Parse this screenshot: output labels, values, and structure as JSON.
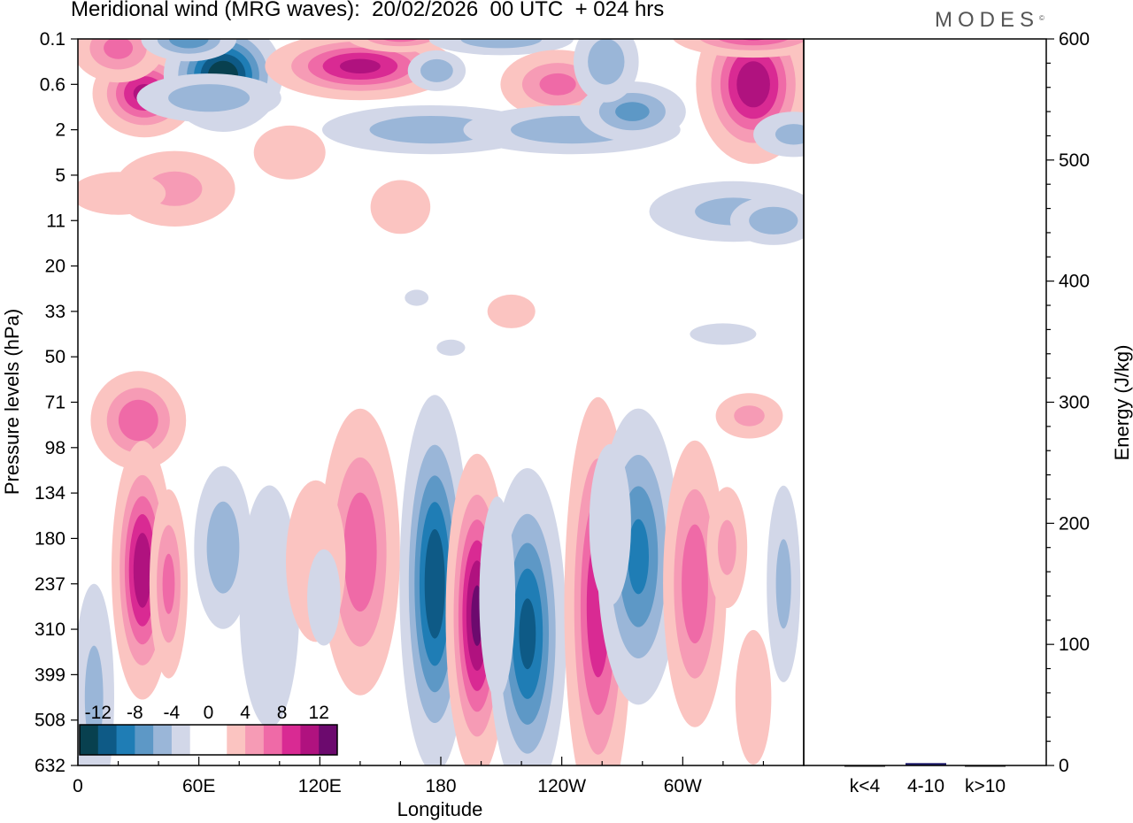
{
  "header": {
    "title": "Meridional wind (MRG waves):  20/02/2026  00 UTC  + 024 hrs",
    "brand": "MODES",
    "brand_mark": "©"
  },
  "colors": {
    "n12": "#08404f",
    "n10": "#0e5a86",
    "n8": "#1f7db5",
    "n6": "#5d98c6",
    "n4": "#9ab6d8",
    "n2": "#d2d7e8",
    "zero": "#ffffff",
    "p2": "#fbc4c1",
    "p4": "#f69bb5",
    "p6": "#ef6aa7",
    "p8": "#d92a93",
    "p10": "#b0127f",
    "p12": "#6c0a6e",
    "bar": "#1c1a6b"
  },
  "chart_data": [
    {
      "type": "heatmap",
      "title": "Meridional wind (MRG waves):  20/02/2026  00 UTC  + 024 hrs",
      "xlabel": "Longitude",
      "ylabel": "Pressure levels (hPa)",
      "x_ticks": [
        "0",
        "60E",
        "120E",
        "180",
        "120W",
        "60W"
      ],
      "x_tick_degrees": [
        0,
        60,
        120,
        180,
        240,
        300
      ],
      "xlim": [
        0,
        360
      ],
      "y_ticks": [
        "0.1",
        "0.6",
        "2",
        "5",
        "11",
        "20",
        "33",
        "50",
        "71",
        "98",
        "134",
        "180",
        "237",
        "310",
        "399",
        "508",
        "632"
      ],
      "y_index_range": [
        0,
        16
      ],
      "colorbar": {
        "labels": [
          "-12",
          "-8",
          "-4",
          "0",
          "4",
          "8",
          "12"
        ],
        "bins": [
          "n12",
          "n10",
          "n8",
          "n6",
          "n4",
          "n2",
          "zero",
          "zero",
          "p2",
          "p4",
          "p6",
          "p8",
          "p10",
          "p12"
        ]
      },
      "features": [
        {
          "lon": 33,
          "lev": 1.2,
          "value": 10,
          "wlon": 12,
          "wlev": 0.45
        },
        {
          "lon": 20,
          "lev": 0.2,
          "value": 6,
          "wlon": 12,
          "wlev": 0.4
        },
        {
          "lon": 72,
          "lev": 0.8,
          "value": -13,
          "wlon": 13,
          "wlev": 0.55
        },
        {
          "lon": 55,
          "lev": 0.0,
          "value": -7,
          "wlon": 12,
          "wlev": 0.25
        },
        {
          "lon": 65,
          "lev": 1.3,
          "value": -5,
          "wlon": 20,
          "wlev": 0.3
        },
        {
          "lon": 140,
          "lev": 0.6,
          "value": 10,
          "wlon": 22,
          "wlev": 0.35
        },
        {
          "lon": 160,
          "lev": -0.1,
          "value": 7,
          "wlon": 14,
          "wlev": 0.2
        },
        {
          "lon": 178,
          "lev": 0.7,
          "value": -5,
          "wlon": 8,
          "wlev": 0.25
        },
        {
          "lon": 210,
          "lev": 0.0,
          "value": -5,
          "wlon": 20,
          "wlev": 0.2
        },
        {
          "lon": 175,
          "lev": 2.0,
          "value": -5,
          "wlon": 30,
          "wlev": 0.3
        },
        {
          "lon": 238,
          "lev": 1.0,
          "value": 6,
          "wlon": 15,
          "wlev": 0.4
        },
        {
          "lon": 245,
          "lev": 2.0,
          "value": -5,
          "wlon": 30,
          "wlev": 0.3
        },
        {
          "lon": 275,
          "lev": 1.6,
          "value": -6,
          "wlon": 14,
          "wlev": 0.35
        },
        {
          "lon": 262,
          "lev": 0.5,
          "value": -5,
          "wlon": 9,
          "wlev": 0.5
        },
        {
          "lon": 335,
          "lev": 1.0,
          "value": 11,
          "wlon": 13,
          "wlev": 0.8
        },
        {
          "lon": 335,
          "lev": -0.1,
          "value": 8,
          "wlon": 20,
          "wlev": 0.25
        },
        {
          "lon": 355,
          "lev": 2.1,
          "value": -4,
          "wlon": 12,
          "wlev": 0.3
        },
        {
          "lon": 325,
          "lev": 3.8,
          "value": -4,
          "wlon": 25,
          "wlev": 0.4
        },
        {
          "lon": 345,
          "lev": 4.0,
          "value": -5,
          "wlon": 12,
          "wlev": 0.3
        },
        {
          "lon": 48,
          "lev": 3.3,
          "value": 4,
          "wlon": 18,
          "wlev": 0.5
        },
        {
          "lon": 20,
          "lev": 3.4,
          "value": 2,
          "wlon": 20,
          "wlev": 0.4
        },
        {
          "lon": 105,
          "lev": 2.5,
          "value": 3,
          "wlon": 12,
          "wlev": 0.4
        },
        {
          "lon": 160,
          "lev": 3.7,
          "value": 3,
          "wlon": 10,
          "wlev": 0.4
        },
        {
          "lon": 215,
          "lev": 6.0,
          "value": 3,
          "wlon": 8,
          "wlev": 0.25
        },
        {
          "lon": 320,
          "lev": 6.5,
          "value": -2,
          "wlon": 14,
          "wlev": 0.2
        },
        {
          "lon": 185,
          "lev": 6.8,
          "value": -2,
          "wlon": 6,
          "wlev": 0.15
        },
        {
          "lon": 168,
          "lev": 5.7,
          "value": -2,
          "wlon": 5,
          "wlev": 0.15
        },
        {
          "lon": 30,
          "lev": 8.4,
          "value": 7,
          "wlon": 12,
          "wlev": 0.55
        },
        {
          "lon": 333,
          "lev": 8.3,
          "value": 4,
          "wlon": 10,
          "wlev": 0.3
        },
        {
          "lon": 32,
          "lev": 11.7,
          "value": 11,
          "wlon": 7,
          "wlev": 1.3
        },
        {
          "lon": 45,
          "lev": 12.0,
          "value": 6,
          "wlon": 5,
          "wlev": 1.1
        },
        {
          "lon": 72,
          "lev": 11.2,
          "value": -5,
          "wlon": 8,
          "wlev": 1.0
        },
        {
          "lon": 95,
          "lev": 12.5,
          "value": -3,
          "wlon": 10,
          "wlev": 1.8
        },
        {
          "lon": 8,
          "lev": 14.5,
          "value": -4,
          "wlon": 6,
          "wlev": 1.5
        },
        {
          "lon": 140,
          "lev": 11.3,
          "value": 7,
          "wlon": 10,
          "wlev": 1.6
        },
        {
          "lon": 118,
          "lev": 11.5,
          "value": 3,
          "wlon": 10,
          "wlev": 1.2
        },
        {
          "lon": 177,
          "lev": 12.0,
          "value": -11,
          "wlon": 8,
          "wlev": 1.9
        },
        {
          "lon": 198,
          "lev": 12.7,
          "value": 12,
          "wlon": 7,
          "wlev": 1.6
        },
        {
          "lon": 223,
          "lev": 13.1,
          "value": -10,
          "wlon": 9,
          "wlev": 1.7
        },
        {
          "lon": 208,
          "lev": 12.3,
          "value": -3,
          "wlon": 6,
          "wlev": 1.5
        },
        {
          "lon": 258,
          "lev": 12.5,
          "value": 9,
          "wlon": 8,
          "wlev": 2.2
        },
        {
          "lon": 278,
          "lev": 11.4,
          "value": -8,
          "wlon": 10,
          "wlev": 1.6
        },
        {
          "lon": 264,
          "lev": 10.7,
          "value": -3,
          "wlon": 7,
          "wlev": 1.2
        },
        {
          "lon": 306,
          "lev": 12.0,
          "value": 7,
          "wlon": 8,
          "wlev": 1.6
        },
        {
          "lon": 322,
          "lev": 11.2,
          "value": 4,
          "wlon": 6,
          "wlev": 0.8
        },
        {
          "lon": 350,
          "lev": 12.0,
          "value": -4,
          "wlon": 5,
          "wlev": 1.3
        },
        {
          "lon": 335,
          "lev": 14.5,
          "value": 3,
          "wlon": 6,
          "wlev": 1.0
        },
        {
          "lon": 122,
          "lev": 12.3,
          "value": -2,
          "wlon": 7,
          "wlev": 0.9
        }
      ]
    },
    {
      "type": "bar",
      "categories": [
        "k<4",
        "4-10",
        "k>10"
      ],
      "values": [
        0,
        2,
        0
      ],
      "ylabel": "Energy (J/kg)",
      "ylim": [
        0,
        600
      ],
      "y_ticks": [
        0,
        100,
        200,
        300,
        400,
        500,
        600
      ]
    }
  ]
}
